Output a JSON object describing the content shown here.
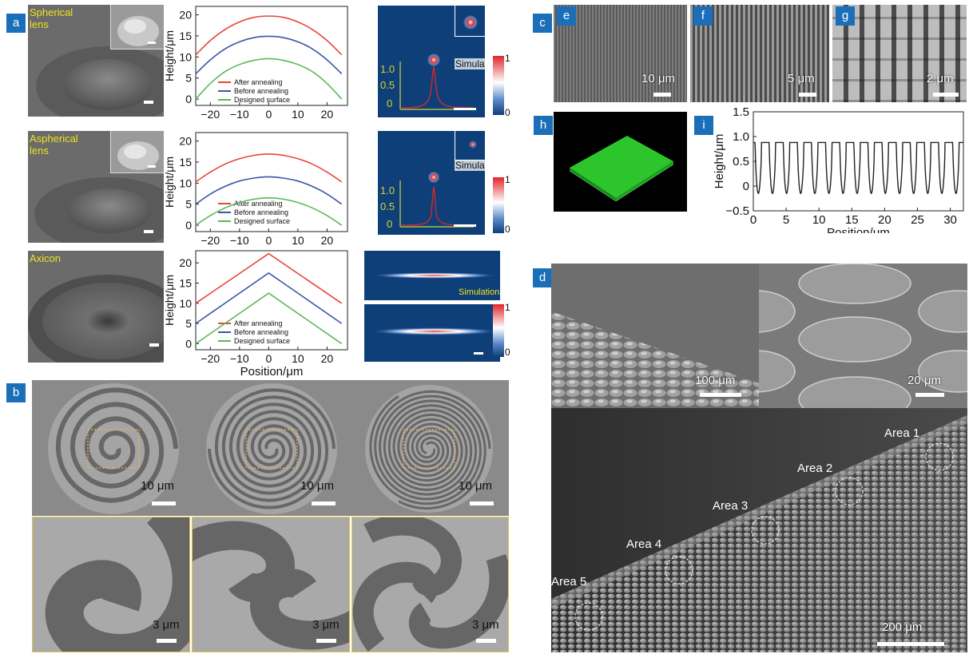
{
  "panel_labels": {
    "a": "a",
    "b": "b",
    "c": "c",
    "d": "d",
    "e": "e",
    "f": "f",
    "g": "g",
    "h": "h",
    "i": "i"
  },
  "panel_a": {
    "rows": [
      {
        "name": "Spherical\nlens",
        "label_l1": "Spherical",
        "label_l2": "lens",
        "sim_label": "Simulation"
      },
      {
        "name": "Aspherical lens",
        "label_l1": "Aspherical",
        "label_l2": "lens",
        "sim_label": "Simulation"
      },
      {
        "name": "Axicon",
        "label_l1": "Axicon",
        "label_l2": "",
        "sim_label": "Simulation"
      }
    ],
    "colorbar": {
      "max": "1",
      "min": "0"
    },
    "intensity_ticks": [
      "1.0",
      "0.5",
      "0"
    ]
  },
  "chart_data": [
    {
      "type": "line",
      "id": "spherical-profile",
      "xlabel": "",
      "ylabel": "Height/μm",
      "xlim": [
        -25,
        27
      ],
      "ylim": [
        -1.5,
        22
      ],
      "xticks": [
        -20,
        -10,
        0,
        10,
        20
      ],
      "yticks": [
        0,
        5,
        10,
        15,
        20
      ],
      "series": [
        {
          "name": "After annealing",
          "color": "#e8453c",
          "x": [
            -25,
            -20,
            -15,
            -10,
            -5,
            0,
            5,
            10,
            15,
            20,
            25
          ],
          "y": [
            10.5,
            13.9,
            16.5,
            18.3,
            19.4,
            19.7,
            19.4,
            18.3,
            16.5,
            13.9,
            10.5
          ]
        },
        {
          "name": "Before annealing",
          "color": "#3b56a6",
          "x": [
            -25,
            -20,
            -15,
            -10,
            -5,
            0,
            5,
            10,
            15,
            20,
            25
          ],
          "y": [
            6,
            9.3,
            11.9,
            13.6,
            14.6,
            14.9,
            14.6,
            13.6,
            11.9,
            9.3,
            6
          ]
        },
        {
          "name": "Designed surface",
          "color": "#5bb85a",
          "x": [
            -25,
            -20,
            -15,
            -10,
            -5,
            0,
            5,
            10,
            15,
            20,
            25
          ],
          "y": [
            0,
            3.7,
            6.5,
            8.2,
            9.2,
            9.6,
            9.2,
            8.2,
            6.5,
            3.7,
            0
          ]
        }
      ]
    },
    {
      "type": "line",
      "id": "aspherical-profile",
      "xlabel": "",
      "ylabel": "Height/μm",
      "xlim": [
        -25,
        27
      ],
      "ylim": [
        -1.5,
        22
      ],
      "xticks": [
        -20,
        -10,
        0,
        10,
        20
      ],
      "yticks": [
        0,
        5,
        10,
        15,
        20
      ],
      "series": [
        {
          "name": "After annealing",
          "color": "#e8453c",
          "x": [
            -25,
            -20,
            -15,
            -10,
            -5,
            0,
            5,
            10,
            15,
            20,
            25
          ],
          "y": [
            10.3,
            12.6,
            14.5,
            15.8,
            16.6,
            16.9,
            16.6,
            15.8,
            14.5,
            12.6,
            10.3
          ]
        },
        {
          "name": "Before annealing",
          "color": "#3b56a6",
          "x": [
            -25,
            -20,
            -15,
            -10,
            -5,
            0,
            5,
            10,
            15,
            20,
            25
          ],
          "y": [
            5,
            7.4,
            9.2,
            10.5,
            11.2,
            11.5,
            11.2,
            10.5,
            9.2,
            7.4,
            5
          ]
        },
        {
          "name": "Designed surface",
          "color": "#5bb85a",
          "x": [
            -25,
            -20,
            -15,
            -10,
            -5,
            0,
            5,
            10,
            15,
            20,
            25
          ],
          "y": [
            0,
            2.3,
            4.1,
            5.4,
            6.2,
            6.5,
            6.2,
            5.4,
            4.1,
            2.3,
            0
          ]
        }
      ]
    },
    {
      "type": "line",
      "id": "axicon-profile",
      "xlabel": "Position/μm",
      "ylabel": "Height/μm",
      "xlim": [
        -25,
        27
      ],
      "ylim": [
        -1.5,
        23
      ],
      "xticks": [
        -20,
        -10,
        0,
        10,
        20
      ],
      "yticks": [
        0,
        5,
        10,
        15,
        20
      ],
      "series": [
        {
          "name": "After annealing",
          "color": "#e8453c",
          "x": [
            -25,
            0,
            25
          ],
          "y": [
            10,
            22.3,
            10
          ]
        },
        {
          "name": "Before annealing",
          "color": "#3b56a6",
          "x": [
            -25,
            0,
            25
          ],
          "y": [
            5,
            17.5,
            5
          ]
        },
        {
          "name": "Designed surface",
          "color": "#5bb85a",
          "x": [
            -25,
            0,
            25
          ],
          "y": [
            0,
            12.5,
            0
          ]
        }
      ]
    },
    {
      "type": "line",
      "id": "grating-profile",
      "xlabel": "Position/μm",
      "ylabel": "Height/μm",
      "xlim": [
        0,
        32
      ],
      "ylim": [
        -0.5,
        1.5
      ],
      "xticks": [
        0,
        5,
        10,
        15,
        20,
        25,
        30
      ],
      "yticks": [
        -0.5,
        0,
        0.5,
        1.0,
        1.5
      ],
      "period": 2.15,
      "high": 0.88,
      "low": -0.15,
      "series": [
        {
          "name": "",
          "color": "#222222"
        }
      ]
    }
  ],
  "panel_b": {
    "scale_large": "10 μm",
    "scale_small": "3 μm"
  },
  "panel_top_right": {
    "e_scale": "10 μm",
    "f_scale": "5 μm",
    "g_scale": "2 μm"
  },
  "panel_d": {
    "scale_left": "100 μm",
    "scale_right": "20 μm",
    "scale_main": "200 μm",
    "areas": [
      "Area 1",
      "Area 2",
      "Area 3",
      "Area 4",
      "Area 5"
    ]
  }
}
